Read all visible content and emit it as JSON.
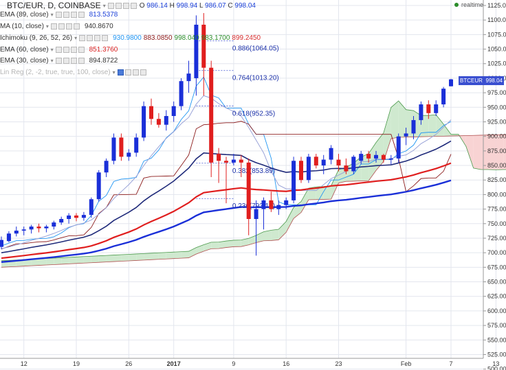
{
  "header": {
    "symbol_line": "BTC/EUR, D, COINBASE",
    "ohlc": {
      "o_label": "O",
      "o": "986.14",
      "h_label": "H",
      "h": "998.94",
      "l_label": "L",
      "l": "986.07",
      "c_label": "C",
      "c": "998.04"
    },
    "realtime_label": "realtime"
  },
  "indicators": [
    {
      "name": "EMA (89, close)",
      "values": [
        "813.5378"
      ],
      "colors": [
        "#1a3fd8"
      ]
    },
    {
      "name": "MA (10, close)",
      "values": [
        "940.8670"
      ],
      "colors": [
        "#333333"
      ]
    },
    {
      "name": "Ichimoku (9, 26, 52, 26)",
      "values": [
        "930.9800",
        "883.0850",
        "998.040",
        "983.1700",
        "899.2450"
      ],
      "colors": [
        "#2196f3",
        "#8b1a1a",
        "#2a8c2a",
        "#2a8c2a",
        "#d83030"
      ]
    },
    {
      "name": "EMA (60, close)",
      "values": [
        "851.3760"
      ],
      "colors": [
        "#d81e1e"
      ]
    },
    {
      "name": "EMA (30, close)",
      "values": [
        "894.8722"
      ],
      "colors": [
        "#333333"
      ]
    },
    {
      "name": "Lin Reg (2, -2, true, true, 100, close)",
      "values": [],
      "colors": []
    }
  ],
  "price_tag": {
    "symbol": "BTCEUR",
    "value": "998.04",
    "color": "#3a4fd0"
  },
  "chart_data": {
    "type": "candlestick",
    "y_axis": {
      "min": 500,
      "max": 1125,
      "ticks": [
        1125,
        1100,
        1075,
        1050,
        1025,
        1000,
        975,
        950,
        925,
        900,
        875,
        850,
        825,
        800,
        775,
        750,
        725,
        700,
        675,
        650,
        625,
        600,
        575,
        550,
        525,
        500
      ]
    },
    "x_ticks": [
      {
        "label": "12",
        "index": 3
      },
      {
        "label": "19",
        "index": 10
      },
      {
        "label": "26",
        "index": 17
      },
      {
        "label": "2017",
        "index": 23
      },
      {
        "label": "9",
        "index": 31
      },
      {
        "label": "16",
        "index": 38
      },
      {
        "label": "23",
        "index": 45
      },
      {
        "label": "Feb",
        "index": 54
      },
      {
        "label": "7",
        "index": 60
      },
      {
        "label": "13",
        "index": 66
      }
    ],
    "candles": [
      {
        "o": 710,
        "h": 728,
        "l": 706,
        "c": 722
      },
      {
        "o": 720,
        "h": 737,
        "l": 718,
        "c": 733
      },
      {
        "o": 733,
        "h": 745,
        "l": 728,
        "c": 738
      },
      {
        "o": 738,
        "h": 745,
        "l": 730,
        "c": 740
      },
      {
        "o": 740,
        "h": 748,
        "l": 733,
        "c": 745
      },
      {
        "o": 745,
        "h": 750,
        "l": 735,
        "c": 742
      },
      {
        "o": 742,
        "h": 748,
        "l": 735,
        "c": 745
      },
      {
        "o": 745,
        "h": 755,
        "l": 740,
        "c": 752
      },
      {
        "o": 752,
        "h": 762,
        "l": 748,
        "c": 758
      },
      {
        "o": 758,
        "h": 768,
        "l": 750,
        "c": 764
      },
      {
        "o": 764,
        "h": 768,
        "l": 754,
        "c": 760
      },
      {
        "o": 760,
        "h": 770,
        "l": 755,
        "c": 765
      },
      {
        "o": 765,
        "h": 795,
        "l": 760,
        "c": 792
      },
      {
        "o": 792,
        "h": 842,
        "l": 788,
        "c": 838
      },
      {
        "o": 838,
        "h": 862,
        "l": 830,
        "c": 858
      },
      {
        "o": 858,
        "h": 905,
        "l": 852,
        "c": 898
      },
      {
        "o": 898,
        "h": 905,
        "l": 858,
        "c": 865
      },
      {
        "o": 865,
        "h": 878,
        "l": 858,
        "c": 872
      },
      {
        "o": 872,
        "h": 905,
        "l": 865,
        "c": 898
      },
      {
        "o": 898,
        "h": 960,
        "l": 892,
        "c": 952
      },
      {
        "o": 952,
        "h": 965,
        "l": 920,
        "c": 930
      },
      {
        "o": 930,
        "h": 940,
        "l": 915,
        "c": 920
      },
      {
        "o": 920,
        "h": 945,
        "l": 910,
        "c": 935
      },
      {
        "o": 935,
        "h": 960,
        "l": 925,
        "c": 952
      },
      {
        "o": 952,
        "h": 1000,
        "l": 945,
        "c": 995
      },
      {
        "o": 995,
        "h": 1030,
        "l": 975,
        "c": 1008
      },
      {
        "o": 1000,
        "h": 1108,
        "l": 970,
        "c": 1092
      },
      {
        "o": 1092,
        "h": 1112,
        "l": 970,
        "c": 1018
      },
      {
        "o": 1018,
        "h": 1030,
        "l": 830,
        "c": 855
      },
      {
        "o": 870,
        "h": 880,
        "l": 820,
        "c": 858
      },
      {
        "o": 858,
        "h": 865,
        "l": 785,
        "c": 855
      },
      {
        "o": 855,
        "h": 870,
        "l": 850,
        "c": 860
      },
      {
        "o": 860,
        "h": 868,
        "l": 830,
        "c": 855
      },
      {
        "o": 855,
        "h": 862,
        "l": 730,
        "c": 758
      },
      {
        "o": 758,
        "h": 790,
        "l": 695,
        "c": 775
      },
      {
        "o": 775,
        "h": 795,
        "l": 740,
        "c": 790
      },
      {
        "o": 790,
        "h": 805,
        "l": 770,
        "c": 775
      },
      {
        "o": 775,
        "h": 790,
        "l": 765,
        "c": 782
      },
      {
        "o": 782,
        "h": 795,
        "l": 775,
        "c": 790
      },
      {
        "o": 790,
        "h": 865,
        "l": 785,
        "c": 858
      },
      {
        "o": 858,
        "h": 865,
        "l": 820,
        "c": 825
      },
      {
        "o": 825,
        "h": 870,
        "l": 820,
        "c": 865
      },
      {
        "o": 865,
        "h": 870,
        "l": 845,
        "c": 850
      },
      {
        "o": 850,
        "h": 868,
        "l": 835,
        "c": 860
      },
      {
        "o": 860,
        "h": 885,
        "l": 852,
        "c": 880
      },
      {
        "o": 860,
        "h": 870,
        "l": 840,
        "c": 850
      },
      {
        "o": 850,
        "h": 862,
        "l": 835,
        "c": 840
      },
      {
        "o": 840,
        "h": 868,
        "l": 835,
        "c": 865
      },
      {
        "o": 858,
        "h": 875,
        "l": 852,
        "c": 870
      },
      {
        "o": 870,
        "h": 875,
        "l": 855,
        "c": 862
      },
      {
        "o": 862,
        "h": 875,
        "l": 855,
        "c": 868
      },
      {
        "o": 868,
        "h": 870,
        "l": 855,
        "c": 860
      },
      {
        "o": 860,
        "h": 868,
        "l": 852,
        "c": 862
      },
      {
        "o": 862,
        "h": 905,
        "l": 855,
        "c": 900
      },
      {
        "o": 900,
        "h": 915,
        "l": 885,
        "c": 905
      },
      {
        "o": 905,
        "h": 935,
        "l": 895,
        "c": 928
      },
      {
        "o": 928,
        "h": 960,
        "l": 920,
        "c": 955
      },
      {
        "o": 955,
        "h": 962,
        "l": 930,
        "c": 940
      },
      {
        "o": 940,
        "h": 962,
        "l": 935,
        "c": 955
      },
      {
        "o": 955,
        "h": 985,
        "l": 950,
        "c": 982
      },
      {
        "o": 986.14,
        "h": 998.94,
        "l": 986.07,
        "c": 998.04
      }
    ],
    "fibonacci": [
      {
        "label": "0.886(1064.05)",
        "value": 1064.05
      },
      {
        "label": "0.764(1013.20)",
        "value": 1013.2
      },
      {
        "label": "0.618(952.35)",
        "value": 952.35
      },
      {
        "label": "0.382(853.89)",
        "value": 853.89
      },
      {
        "label": "0.236(793.14)",
        "value": 793.14
      }
    ],
    "colors": {
      "up": "#1a2fd8",
      "down": "#e01e1e",
      "grid": "#e3e6ee",
      "cloud": "#c9e8c9"
    }
  }
}
